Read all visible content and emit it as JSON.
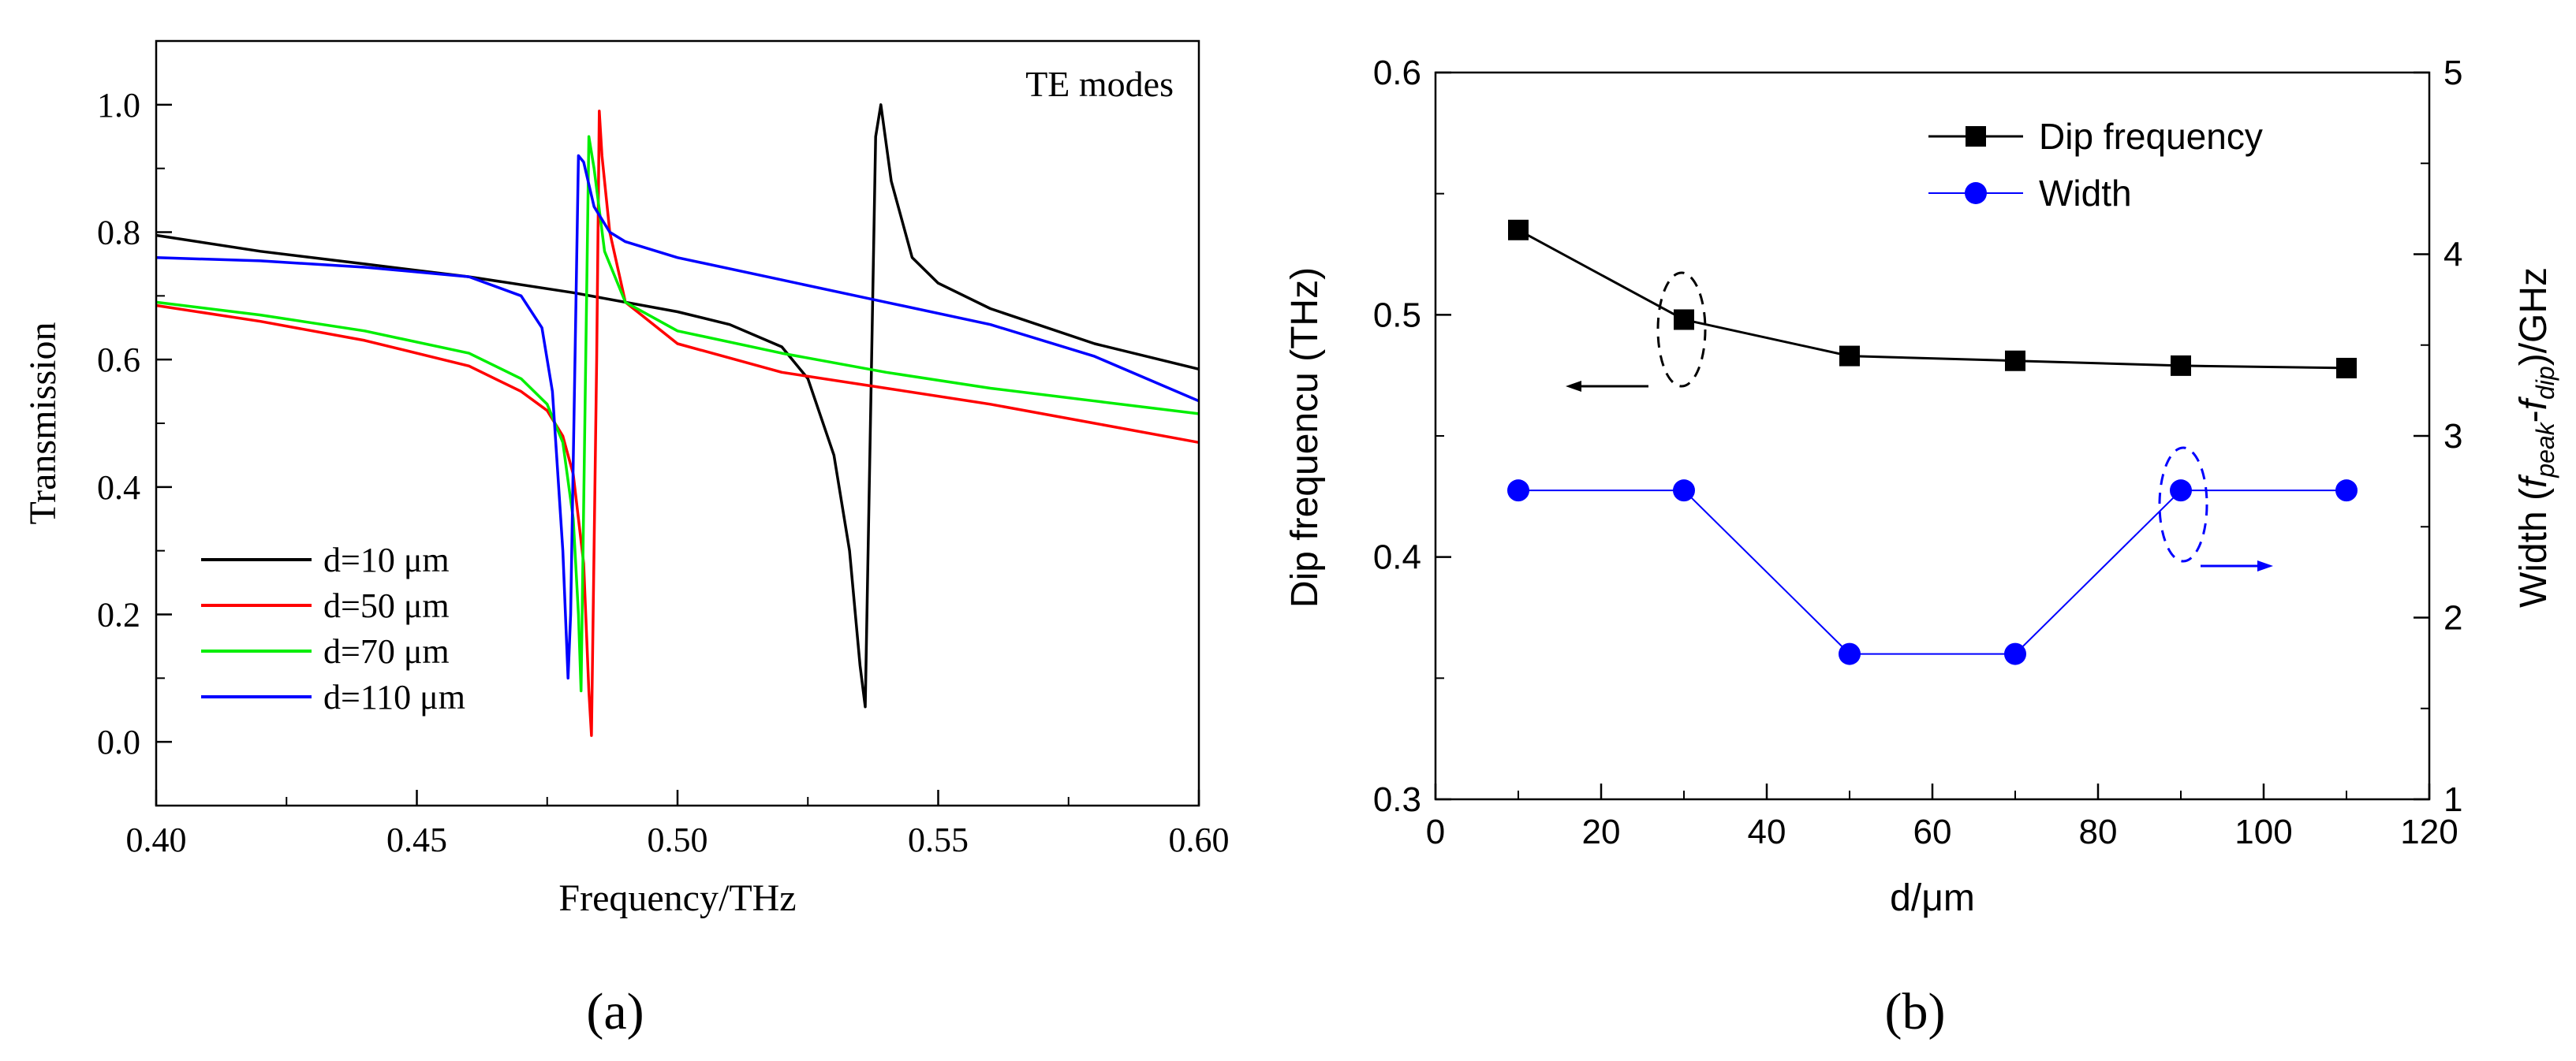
{
  "chart_data": [
    {
      "type": "line",
      "panel_label": "(a)",
      "title": "",
      "annotation": "TE modes",
      "xlabel": "Frequency/THz",
      "ylabel": "Transmission",
      "xlim": [
        0.4,
        0.6
      ],
      "ylim": [
        -0.1,
        1.1
      ],
      "xticks": [
        "0.40",
        "0.45",
        "0.50",
        "0.55",
        "0.60"
      ],
      "yticks": [
        "0.0",
        "0.2",
        "0.4",
        "0.6",
        "0.8",
        "1.0"
      ],
      "legend_position": "bottom-left",
      "series": [
        {
          "name": "d=10 μm",
          "color": "#000000",
          "x": [
            0.4,
            0.42,
            0.44,
            0.46,
            0.48,
            0.5,
            0.51,
            0.52,
            0.525,
            0.53,
            0.533,
            0.535,
            0.536,
            0.537,
            0.538,
            0.539,
            0.541,
            0.545,
            0.55,
            0.56,
            0.58,
            0.6
          ],
          "y": [
            0.795,
            0.77,
            0.75,
            0.73,
            0.705,
            0.675,
            0.655,
            0.62,
            0.57,
            0.45,
            0.3,
            0.12,
            0.055,
            0.5,
            0.95,
            1.0,
            0.88,
            0.76,
            0.72,
            0.68,
            0.625,
            0.585
          ]
        },
        {
          "name": "d=50 μm",
          "color": "#ff0000",
          "x": [
            0.4,
            0.42,
            0.44,
            0.46,
            0.47,
            0.475,
            0.478,
            0.48,
            0.482,
            0.483,
            0.4835,
            0.4845,
            0.485,
            0.4855,
            0.487,
            0.49,
            0.5,
            0.52,
            0.54,
            0.56,
            0.58,
            0.6
          ],
          "y": [
            0.685,
            0.66,
            0.63,
            0.59,
            0.55,
            0.52,
            0.48,
            0.42,
            0.28,
            0.08,
            0.01,
            0.6,
            0.99,
            0.92,
            0.8,
            0.69,
            0.625,
            0.58,
            0.555,
            0.53,
            0.5,
            0.47
          ]
        },
        {
          "name": "d=70 μm",
          "color": "#00ee00",
          "x": [
            0.4,
            0.42,
            0.44,
            0.46,
            0.47,
            0.475,
            0.478,
            0.48,
            0.481,
            0.4815,
            0.483,
            0.484,
            0.486,
            0.49,
            0.5,
            0.52,
            0.54,
            0.56,
            0.58,
            0.6
          ],
          "y": [
            0.69,
            0.67,
            0.645,
            0.61,
            0.57,
            0.53,
            0.47,
            0.35,
            0.2,
            0.08,
            0.95,
            0.9,
            0.77,
            0.69,
            0.645,
            0.61,
            0.58,
            0.555,
            0.535,
            0.515
          ]
        },
        {
          "name": "d=110 μm",
          "color": "#0000ff",
          "x": [
            0.4,
            0.42,
            0.44,
            0.46,
            0.47,
            0.474,
            0.476,
            0.478,
            0.479,
            0.4795,
            0.481,
            0.482,
            0.484,
            0.487,
            0.49,
            0.5,
            0.52,
            0.54,
            0.56,
            0.58,
            0.6
          ],
          "y": [
            0.76,
            0.755,
            0.745,
            0.73,
            0.7,
            0.65,
            0.55,
            0.3,
            0.1,
            0.2,
            0.92,
            0.91,
            0.84,
            0.8,
            0.785,
            0.76,
            0.725,
            0.69,
            0.655,
            0.605,
            0.535
          ]
        }
      ]
    },
    {
      "type": "line",
      "panel_label": "(b)",
      "title": "",
      "xlabel": "d/μm",
      "ylabel_left": "Dip frequencu (THz)",
      "ylabel_right": "Width (f_peak-f_dip)/GHz",
      "xlim": [
        0,
        120
      ],
      "ylim_left": [
        0.3,
        0.6
      ],
      "ylim_right": [
        1,
        5
      ],
      "xticks": [
        "0",
        "20",
        "40",
        "60",
        "80",
        "100",
        "120"
      ],
      "yticks_left": [
        "0.3",
        "0.4",
        "0.5",
        "0.6"
      ],
      "yticks_right": [
        "1",
        "2",
        "3",
        "4",
        "5"
      ],
      "legend_position": "top-right",
      "x": [
        10,
        30,
        50,
        70,
        90,
        110
      ],
      "series": [
        {
          "name": "Dip frequency",
          "color": "#000000",
          "marker": "square",
          "axis": "left",
          "values": [
            0.535,
            0.498,
            0.483,
            0.481,
            0.479,
            0.478
          ]
        },
        {
          "name": "Width",
          "color": "#0000ff",
          "marker": "circle",
          "axis": "right",
          "values": [
            2.7,
            2.7,
            1.8,
            1.8,
            2.7,
            2.7
          ]
        }
      ]
    }
  ],
  "ylabel_right_parts": {
    "prefix": "Width (",
    "f1": "f",
    "sub1": "peak",
    "dash": "-",
    "f2": "f",
    "sub2": "dip",
    "suffix": ")/GHz"
  }
}
